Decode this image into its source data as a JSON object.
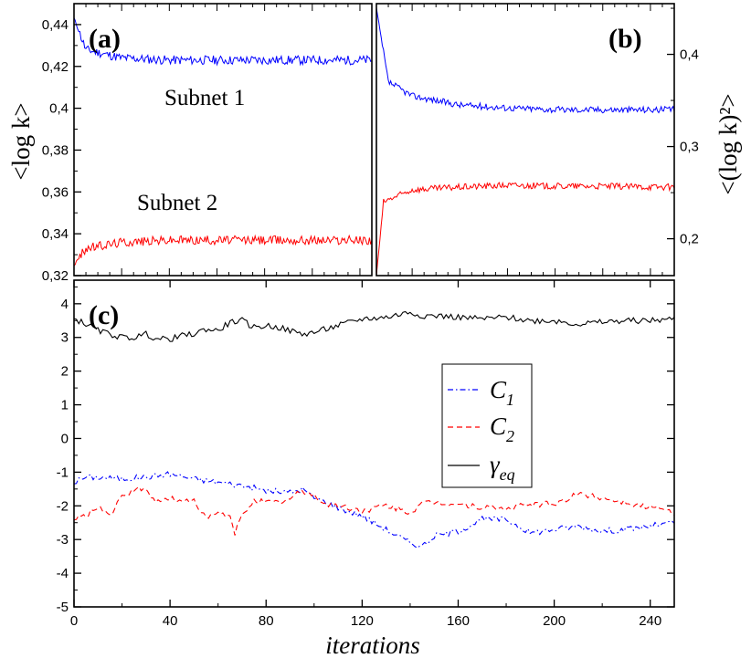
{
  "chart_data": [
    {
      "panel": "a",
      "type": "line",
      "panel_label": "(a)",
      "ylabel": "<log k>",
      "ylim": [
        0.32,
        0.45
      ],
      "xlim": [
        0,
        125
      ],
      "yticks": [
        "0,32",
        "0,34",
        "0,36",
        "0,38",
        "0,4",
        "0,42",
        "0,44"
      ],
      "annotations": [
        "Subnet 1",
        "Subnet 2"
      ],
      "series": [
        {
          "name": "Subnet 1",
          "color": "#0000ff",
          "start": 0.443,
          "plateau": 0.423,
          "tau": 4,
          "noise": 0.0022,
          "points": [
            [
              0,
              0.443
            ],
            [
              5,
              0.428
            ],
            [
              20,
              0.424
            ],
            [
              40,
              0.423
            ],
            [
              60,
              0.423
            ],
            [
              80,
              0.423
            ],
            [
              100,
              0.423
            ],
            [
              125,
              0.423
            ]
          ]
        },
        {
          "name": "Subnet 2",
          "color": "#ff0000",
          "start": 0.325,
          "plateau": 0.337,
          "tau": 5,
          "noise": 0.0022,
          "points": [
            [
              0,
              0.325
            ],
            [
              5,
              0.333
            ],
            [
              20,
              0.336
            ],
            [
              40,
              0.337
            ],
            [
              60,
              0.337
            ],
            [
              80,
              0.337
            ],
            [
              100,
              0.337
            ],
            [
              125,
              0.337
            ]
          ]
        }
      ]
    },
    {
      "panel": "b",
      "type": "line",
      "panel_label": "(b)",
      "ylabel": "<(log k)²>",
      "ylim": [
        0.16,
        0.455
      ],
      "xlim": [
        125,
        250
      ],
      "yticks": [
        "0,2",
        "0,3",
        "0,4"
      ],
      "series": [
        {
          "name": "Subnet 1",
          "color": "#0000ff",
          "start": 0.45,
          "plateau": 0.339,
          "tau": 7,
          "noise": 0.0035,
          "points": [
            [
              125,
              0.45
            ],
            [
              130,
              0.37
            ],
            [
              140,
              0.355
            ],
            [
              160,
              0.345
            ],
            [
              180,
              0.342
            ],
            [
              200,
              0.34
            ],
            [
              220,
              0.34
            ],
            [
              250,
              0.34
            ]
          ]
        },
        {
          "name": "Subnet 2",
          "color": "#ff0000",
          "start": 0.16,
          "plateau": 0.257,
          "tau": 3,
          "noise": 0.0035,
          "points": [
            [
              125,
              0.16
            ],
            [
              128,
              0.24
            ],
            [
              140,
              0.253
            ],
            [
              160,
              0.256
            ],
            [
              180,
              0.258
            ],
            [
              200,
              0.257
            ],
            [
              220,
              0.257
            ],
            [
              250,
              0.256
            ]
          ]
        }
      ]
    },
    {
      "panel": "c",
      "type": "line",
      "panel_label": "(c)",
      "xlabel": "iterations",
      "xlim": [
        0,
        250
      ],
      "ylim": [
        -5,
        4.7
      ],
      "xticks": [
        "0",
        "40",
        "80",
        "120",
        "160",
        "200",
        "240"
      ],
      "yticks": [
        "-5",
        "-4",
        "-3",
        "-2",
        "-1",
        "0",
        "1",
        "2",
        "3",
        "4"
      ],
      "legend": {
        "placement": "center",
        "entries": [
          "C₁",
          "C₂",
          "γeq"
        ]
      },
      "series": [
        {
          "name": "C1",
          "legend_main": "C",
          "legend_sub": "1",
          "color": "#0000ff",
          "style": "dash-dot",
          "points": [
            [
              0,
              -1.3
            ],
            [
              5,
              -1.15
            ],
            [
              10,
              -1.15
            ],
            [
              20,
              -1.2
            ],
            [
              30,
              -1.15
            ],
            [
              40,
              -1.05
            ],
            [
              50,
              -1.2
            ],
            [
              60,
              -1.3
            ],
            [
              70,
              -1.4
            ],
            [
              80,
              -1.55
            ],
            [
              90,
              -1.6
            ],
            [
              95,
              -1.5
            ],
            [
              100,
              -1.75
            ],
            [
              110,
              -2.05
            ],
            [
              120,
              -2.3
            ],
            [
              130,
              -2.7
            ],
            [
              140,
              -3.1
            ],
            [
              145,
              -3.2
            ],
            [
              150,
              -2.9
            ],
            [
              160,
              -2.75
            ],
            [
              170,
              -2.4
            ],
            [
              180,
              -2.4
            ],
            [
              190,
              -2.8
            ],
            [
              200,
              -2.7
            ],
            [
              210,
              -2.6
            ],
            [
              220,
              -2.75
            ],
            [
              230,
              -2.7
            ],
            [
              240,
              -2.6
            ],
            [
              250,
              -2.5
            ]
          ]
        },
        {
          "name": "C2",
          "legend_main": "C",
          "legend_sub": "2",
          "color": "#ff0000",
          "style": "dashed",
          "points": [
            [
              0,
              -2.4
            ],
            [
              5,
              -2.3
            ],
            [
              10,
              -2.0
            ],
            [
              15,
              -2.3
            ],
            [
              20,
              -1.75
            ],
            [
              25,
              -1.5
            ],
            [
              30,
              -1.55
            ],
            [
              35,
              -1.9
            ],
            [
              40,
              -1.75
            ],
            [
              45,
              -1.9
            ],
            [
              50,
              -1.8
            ],
            [
              55,
              -2.4
            ],
            [
              60,
              -2.2
            ],
            [
              65,
              -2.35
            ],
            [
              67,
              -2.8
            ],
            [
              70,
              -2.3
            ],
            [
              75,
              -1.8
            ],
            [
              80,
              -1.9
            ],
            [
              85,
              -1.9
            ],
            [
              90,
              -1.8
            ],
            [
              95,
              -1.55
            ],
            [
              100,
              -1.7
            ],
            [
              105,
              -1.95
            ],
            [
              110,
              -2.0
            ],
            [
              120,
              -2.15
            ],
            [
              130,
              -2.0
            ],
            [
              140,
              -2.2
            ],
            [
              145,
              -1.95
            ],
            [
              150,
              -1.9
            ],
            [
              160,
              -1.95
            ],
            [
              170,
              -2.05
            ],
            [
              180,
              -2.1
            ],
            [
              190,
              -1.95
            ],
            [
              200,
              -1.95
            ],
            [
              210,
              -1.65
            ],
            [
              220,
              -1.75
            ],
            [
              230,
              -1.9
            ],
            [
              240,
              -2.05
            ],
            [
              250,
              -2.2
            ]
          ]
        },
        {
          "name": "γeq",
          "legend_main": "γ",
          "legend_sub": "eq",
          "color": "#000000",
          "style": "solid",
          "points": [
            [
              0,
              3.55
            ],
            [
              5,
              3.4
            ],
            [
              10,
              3.2
            ],
            [
              15,
              3.1
            ],
            [
              20,
              3.0
            ],
            [
              25,
              3.0
            ],
            [
              30,
              3.1
            ],
            [
              35,
              2.95
            ],
            [
              40,
              2.95
            ],
            [
              45,
              3.05
            ],
            [
              50,
              3.1
            ],
            [
              55,
              3.25
            ],
            [
              60,
              3.2
            ],
            [
              65,
              3.45
            ],
            [
              70,
              3.5
            ],
            [
              75,
              3.3
            ],
            [
              80,
              3.35
            ],
            [
              85,
              3.3
            ],
            [
              90,
              3.2
            ],
            [
              95,
              3.1
            ],
            [
              100,
              3.15
            ],
            [
              110,
              3.35
            ],
            [
              120,
              3.55
            ],
            [
              130,
              3.6
            ],
            [
              140,
              3.75
            ],
            [
              145,
              3.65
            ],
            [
              150,
              3.65
            ],
            [
              160,
              3.6
            ],
            [
              170,
              3.55
            ],
            [
              180,
              3.6
            ],
            [
              190,
              3.5
            ],
            [
              200,
              3.5
            ],
            [
              210,
              3.4
            ],
            [
              220,
              3.45
            ],
            [
              230,
              3.5
            ],
            [
              240,
              3.5
            ],
            [
              250,
              3.55
            ]
          ]
        }
      ]
    }
  ]
}
